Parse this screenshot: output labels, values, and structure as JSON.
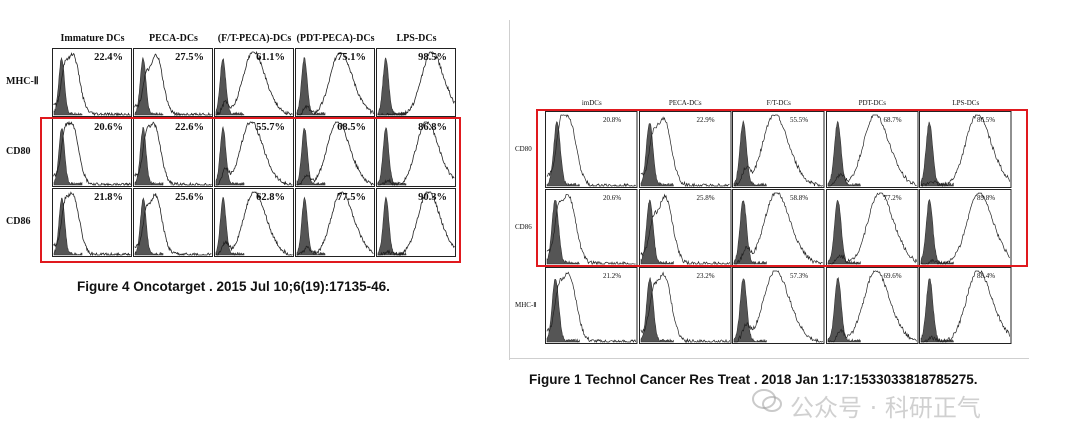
{
  "figureA": {
    "columns": [
      "Immature DCs",
      "PECA-DCs",
      "(F/T-PECA)-DCs",
      "(PDT-PECA)-DCs",
      "LPS-DCs"
    ],
    "rows": [
      {
        "label": "MHC-Ⅱ",
        "values": [
          "22.4%",
          "27.5%",
          "61.1%",
          "75.1%",
          "98.5%"
        ]
      },
      {
        "label": "CD80",
        "values": [
          "20.6%",
          "22.6%",
          "55.7%",
          "68.5%",
          "86.8%"
        ]
      },
      {
        "label": "CD86",
        "values": [
          "21.8%",
          "25.6%",
          "62.8%",
          "77.5%",
          "90.3%"
        ]
      }
    ],
    "caption": "Figure 4 Oncotarget . 2015 Jul 10;6(19):17135-46."
  },
  "figureB": {
    "columns": [
      "imDCs",
      "PECA-DCs",
      "F/T-DCs",
      "PDT-DCs",
      "LPS-DCs"
    ],
    "rows": [
      {
        "label": "CD80",
        "values": [
          "20.8%",
          "22.9%",
          "55.5%",
          "68.7%",
          "86.5%"
        ]
      },
      {
        "label": "CD86",
        "values": [
          "20.6%",
          "25.8%",
          "58.8%",
          "77.2%",
          "89.8%"
        ]
      },
      {
        "label": "MHC-Ⅱ",
        "values": [
          "21.2%",
          "23.2%",
          "57.3%",
          "69.6%",
          "88.4%"
        ]
      }
    ],
    "caption": "Figure 1 Technol Cancer Res Treat . 2018 Jan 1:17:1533033818785275."
  },
  "watermark": "公众号 · 科研正气",
  "colors": {
    "highlight_box": "#e0191e",
    "filled_histogram": "#555555"
  }
}
